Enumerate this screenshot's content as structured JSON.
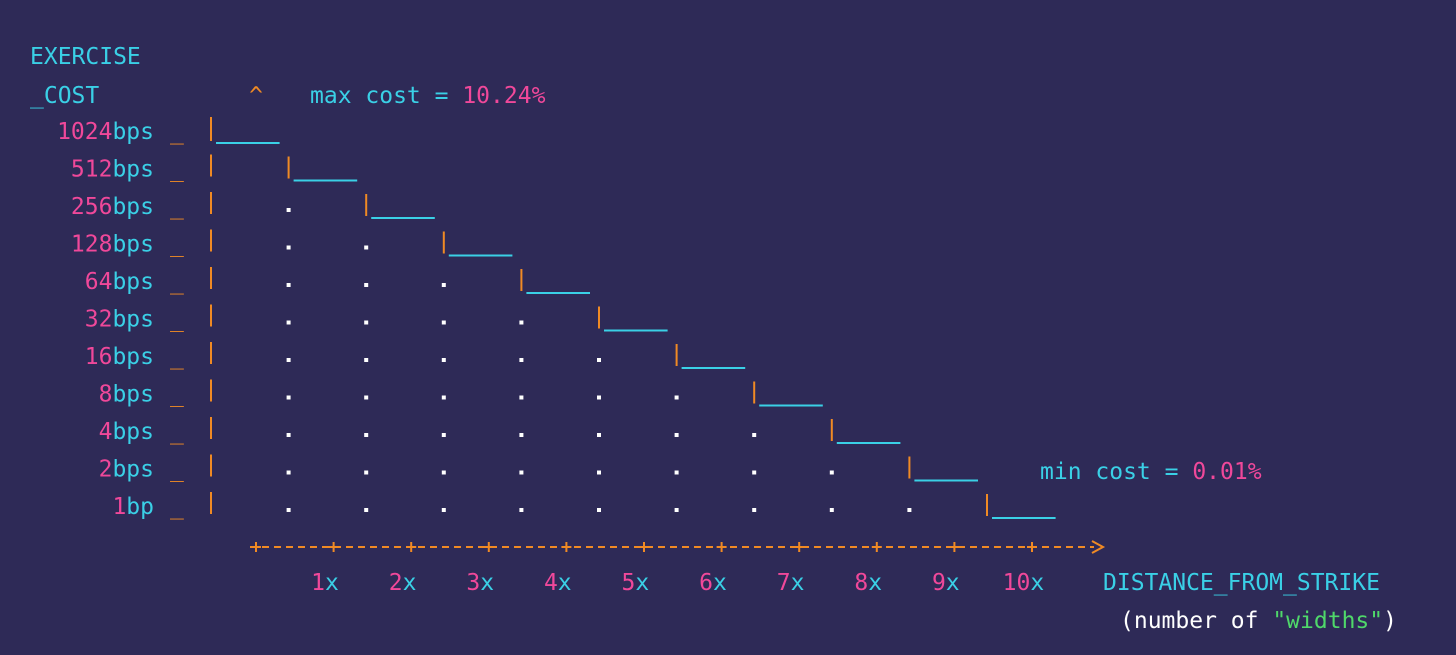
{
  "chart_data": {
    "type": "line",
    "title": "",
    "ylabel_line1": "EXERCISE",
    "ylabel_line2": "_COST",
    "y_arrow": "^",
    "xlabel": "DISTANCE_FROM_STRIKE",
    "xlabel_sub": {
      "open": "(number of ",
      "quoted": "\"widths\"",
      "close": ")"
    },
    "max_note": {
      "label": "max cost = ",
      "value": "10.24%"
    },
    "min_note": {
      "label": "min cost = ",
      "value": "0.01%"
    },
    "y_ticks": [
      {
        "num": "1024",
        "unit": "bps"
      },
      {
        "num": "512",
        "unit": "bps"
      },
      {
        "num": "256",
        "unit": "bps"
      },
      {
        "num": "128",
        "unit": "bps"
      },
      {
        "num": "64",
        "unit": "bps"
      },
      {
        "num": "32",
        "unit": "bps"
      },
      {
        "num": "16",
        "unit": "bps"
      },
      {
        "num": "8",
        "unit": "bps"
      },
      {
        "num": "4",
        "unit": "bps"
      },
      {
        "num": "2",
        "unit": "bps"
      },
      {
        "num": "1",
        "unit": "bp"
      }
    ],
    "x_ticks": [
      {
        "num": "1",
        "unit": "x"
      },
      {
        "num": "2",
        "unit": "x"
      },
      {
        "num": "3",
        "unit": "x"
      },
      {
        "num": "4",
        "unit": "x"
      },
      {
        "num": "5",
        "unit": "x"
      },
      {
        "num": "6",
        "unit": "x"
      },
      {
        "num": "7",
        "unit": "x"
      },
      {
        "num": "8",
        "unit": "x"
      },
      {
        "num": "9",
        "unit": "x"
      },
      {
        "num": "10",
        "unit": "x"
      }
    ],
    "x": [
      0,
      1,
      2,
      3,
      4,
      5,
      6,
      7,
      8,
      9,
      10
    ],
    "series": [
      {
        "values": [
          1024,
          512,
          256,
          128,
          64,
          32,
          16,
          8,
          4,
          2,
          1
        ]
      }
    ],
    "y_scale": "log2",
    "grid": "dotted",
    "colors": {
      "background": "#2e2a57",
      "cyan": "#3ad0e6",
      "pink": "#f0489a",
      "orange": "#f08a24",
      "white": "#ffffff",
      "green": "#4fd86a"
    }
  }
}
